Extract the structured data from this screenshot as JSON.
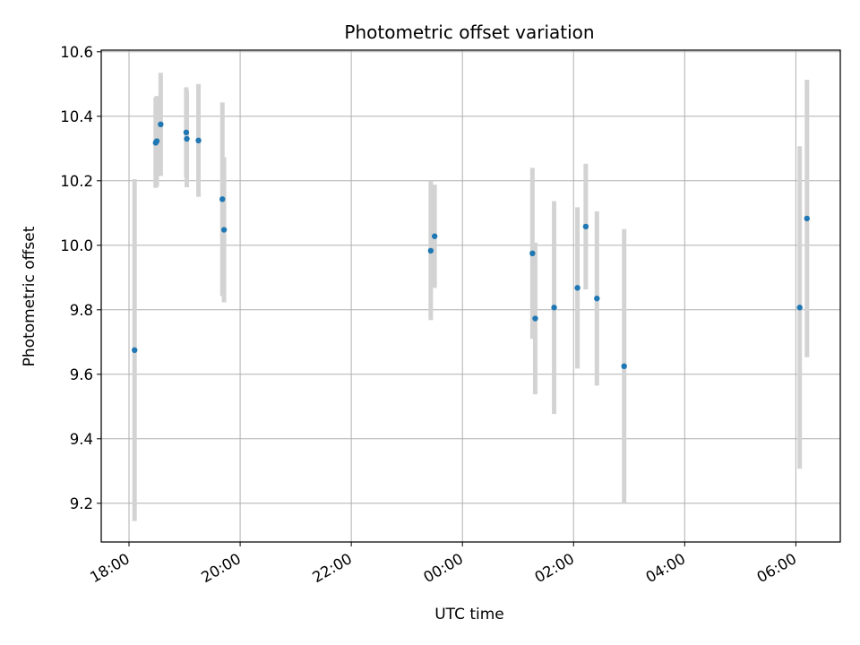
{
  "chart_data": {
    "type": "scatter",
    "title": "Photometric offset variation",
    "xlabel": "UTC time",
    "ylabel": "Photometric offset",
    "grid": true,
    "xlim_hours": [
      17.5,
      30.8
    ],
    "ylim": [
      9.08,
      10.605
    ],
    "x_ticks": [
      {
        "value": 18,
        "label": "18:00"
      },
      {
        "value": 20,
        "label": "20:00"
      },
      {
        "value": 22,
        "label": "22:00"
      },
      {
        "value": 24,
        "label": "00:00"
      },
      {
        "value": 26,
        "label": "02:00"
      },
      {
        "value": 28,
        "label": "04:00"
      },
      {
        "value": 30,
        "label": "06:00"
      }
    ],
    "y_ticks": [
      {
        "value": 9.2,
        "label": "9.2"
      },
      {
        "value": 9.4,
        "label": "9.4"
      },
      {
        "value": 9.6,
        "label": "9.6"
      },
      {
        "value": 9.8,
        "label": "9.8"
      },
      {
        "value": 10.0,
        "label": "10.0"
      },
      {
        "value": 10.2,
        "label": "10.2"
      },
      {
        "value": 10.4,
        "label": "10.4"
      },
      {
        "value": 10.6,
        "label": "10.6"
      }
    ],
    "point_color": "#1f77b4",
    "errorbar_color": "#d3d3d3",
    "points": [
      {
        "x": 18.1,
        "y": 9.675,
        "err": 0.53
      },
      {
        "x": 18.48,
        "y": 10.318,
        "err": 0.14
      },
      {
        "x": 18.5,
        "y": 10.323,
        "err": 0.14
      },
      {
        "x": 18.57,
        "y": 10.375,
        "err": 0.16
      },
      {
        "x": 19.03,
        "y": 10.35,
        "err": 0.14
      },
      {
        "x": 19.04,
        "y": 10.33,
        "err": 0.15
      },
      {
        "x": 19.25,
        "y": 10.325,
        "err": 0.175
      },
      {
        "x": 19.68,
        "y": 10.143,
        "err": 0.3
      },
      {
        "x": 19.71,
        "y": 10.048,
        "err": 0.225
      },
      {
        "x": 23.43,
        "y": 9.983,
        "err": 0.215
      },
      {
        "x": 23.5,
        "y": 10.028,
        "err": 0.16
      },
      {
        "x": 25.26,
        "y": 9.975,
        "err": 0.265
      },
      {
        "x": 25.31,
        "y": 9.773,
        "err": 0.235
      },
      {
        "x": 25.65,
        "y": 9.807,
        "err": 0.33
      },
      {
        "x": 26.07,
        "y": 9.868,
        "err": 0.25
      },
      {
        "x": 26.22,
        "y": 10.058,
        "err": 0.195
      },
      {
        "x": 26.42,
        "y": 9.835,
        "err": 0.27
      },
      {
        "x": 26.91,
        "y": 9.625,
        "err": 0.425
      },
      {
        "x": 30.07,
        "y": 9.807,
        "err": 0.5
      },
      {
        "x": 30.2,
        "y": 10.083,
        "err": 0.43
      }
    ]
  }
}
